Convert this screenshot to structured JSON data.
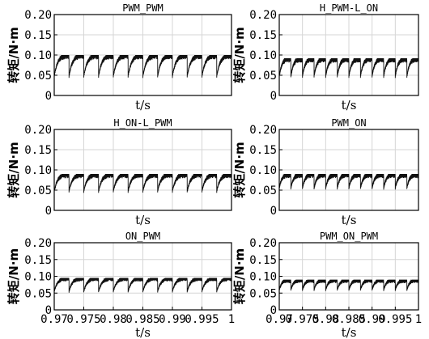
{
  "chart_data": [
    {
      "type": "line",
      "title": "PWM_PWM",
      "xlabel": "t/s",
      "ylabel": "转矩/N·m",
      "xlim": [
        0.97,
        1.0
      ],
      "ylim": [
        0,
        0.2
      ],
      "yticks": [
        "0",
        "0.05",
        "0.10",
        "0.15",
        "0.20"
      ],
      "xticks": [],
      "grid": true,
      "ripple_min": 0.047,
      "ripple_max": 0.1,
      "periods": 12
    },
    {
      "type": "line",
      "title": "H_PWM-L_ON",
      "xlabel": "t/s",
      "ylabel": "转矩/N·m",
      "xlim": [
        0.97,
        1.0
      ],
      "ylim": [
        0,
        0.2
      ],
      "yticks": [
        "0",
        "0.05",
        "0.10",
        "0.15",
        "0.20"
      ],
      "xticks": [],
      "grid": true,
      "ripple_min": 0.047,
      "ripple_max": 0.092,
      "periods": 12
    },
    {
      "type": "line",
      "title": "H_ON-L_PWM",
      "xlabel": "t/s",
      "ylabel": "转矩/N·m",
      "xlim": [
        0.97,
        1.0
      ],
      "ylim": [
        0,
        0.2
      ],
      "yticks": [
        "0",
        "0.05",
        "0.10",
        "0.15",
        "0.20"
      ],
      "xticks": [],
      "grid": true,
      "ripple_min": 0.047,
      "ripple_max": 0.09,
      "periods": 12
    },
    {
      "type": "line",
      "title": "PWM_ON",
      "xlabel": "t/s",
      "ylabel": "转矩/N·m",
      "xlim": [
        0.97,
        1.0
      ],
      "ylim": [
        0,
        0.2
      ],
      "yticks": [
        "0",
        "0.05",
        "0.10",
        "0.15",
        "0.20"
      ],
      "xticks": [],
      "grid": true,
      "ripple_min": 0.055,
      "ripple_max": 0.09,
      "periods": 12
    },
    {
      "type": "line",
      "title": "ON_PWM",
      "xlabel": "t/s",
      "ylabel": "转矩/N·m",
      "xlim": [
        0.97,
        1.0
      ],
      "ylim": [
        0,
        0.2
      ],
      "yticks": [
        "0",
        "0.05",
        "0.10",
        "0.15",
        "0.20"
      ],
      "xticks": [
        "0.97",
        "0.975",
        "0.98",
        "0.985",
        "0.99",
        "0.995",
        "1"
      ],
      "grid": true,
      "ripple_min": 0.055,
      "ripple_max": 0.095,
      "periods": 12
    },
    {
      "type": "line",
      "title": "PWM_ON_PWM",
      "xlabel": "t/s",
      "ylabel": "转矩/N·m",
      "xlim": [
        0.97,
        1.0
      ],
      "ylim": [
        0,
        0.2
      ],
      "yticks": [
        "0",
        "0.05",
        "0.10",
        "0.15",
        "0.20"
      ],
      "xticks": [
        "0.97",
        "0.975",
        "0.98",
        "0.985",
        "0.99",
        "0.995",
        "1"
      ],
      "grid": true,
      "ripple_min": 0.06,
      "ripple_max": 0.09,
      "periods": 12
    }
  ]
}
